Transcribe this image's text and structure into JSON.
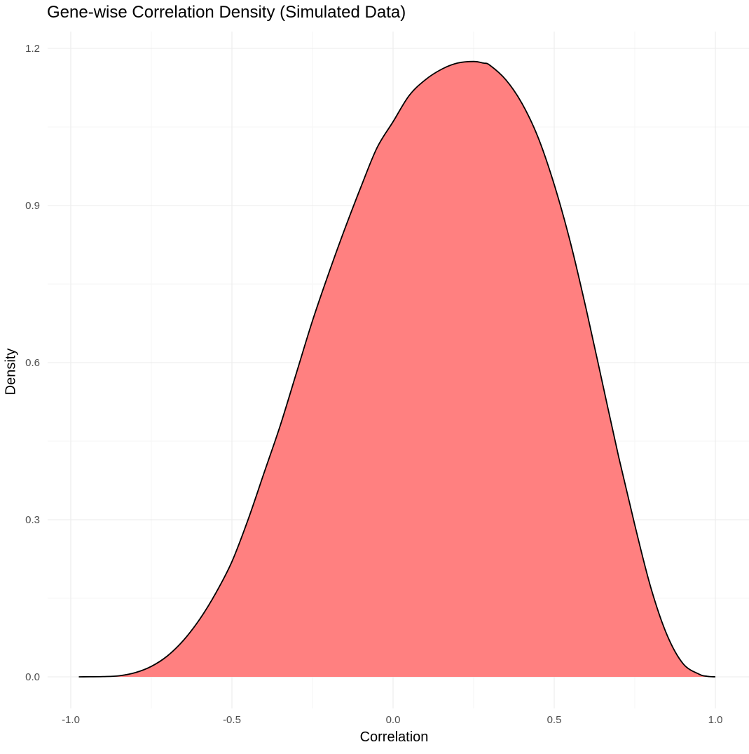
{
  "chart_data": {
    "type": "area",
    "title": "Gene-wise Correlation Density (Simulated Data)",
    "xlabel": "Correlation",
    "ylabel": "Density",
    "xlim": [
      -1.0,
      1.0
    ],
    "ylim": [
      0,
      1.2
    ],
    "x_ticks": [
      "-1.0",
      "-0.5",
      "0.0",
      "0.5",
      "1.0"
    ],
    "y_ticks": [
      "0.0",
      "0.3",
      "0.6",
      "0.9",
      "1.2"
    ],
    "grid": true,
    "legend": "none",
    "series": [
      {
        "fill_color": "#ff8080",
        "line_color": "#000000",
        "x": [
          -0.975,
          -0.9,
          -0.85,
          -0.8,
          -0.75,
          -0.7,
          -0.65,
          -0.6,
          -0.55,
          -0.5,
          -0.45,
          -0.4,
          -0.35,
          -0.3,
          -0.25,
          -0.2,
          -0.15,
          -0.1,
          -0.05,
          0.0,
          0.05,
          0.1,
          0.15,
          0.2,
          0.25,
          0.28,
          0.3,
          0.35,
          0.4,
          0.45,
          0.5,
          0.55,
          0.6,
          0.65,
          0.7,
          0.75,
          0.8,
          0.85,
          0.9,
          0.95,
          0.975,
          1.0
        ],
        "y": [
          0.0,
          0.0005,
          0.002,
          0.008,
          0.02,
          0.04,
          0.07,
          0.11,
          0.16,
          0.22,
          0.3,
          0.39,
          0.48,
          0.58,
          0.68,
          0.77,
          0.855,
          0.935,
          1.01,
          1.06,
          1.11,
          1.14,
          1.16,
          1.172,
          1.175,
          1.172,
          1.168,
          1.14,
          1.095,
          1.03,
          0.94,
          0.83,
          0.7,
          0.56,
          0.42,
          0.29,
          0.17,
          0.08,
          0.025,
          0.005,
          0.001,
          0.0
        ]
      }
    ]
  }
}
